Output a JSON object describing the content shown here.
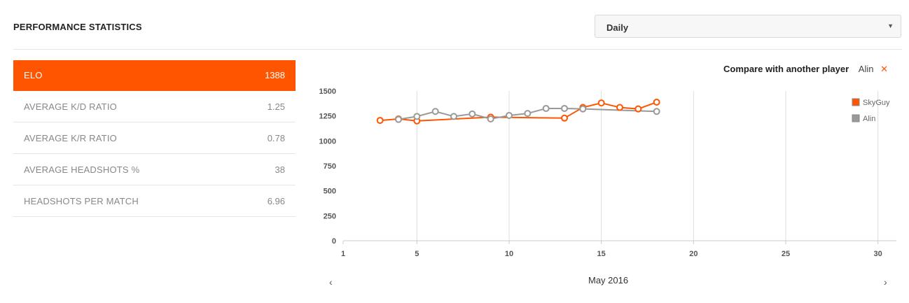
{
  "header": {
    "title": "PERFORMANCE STATISTICS",
    "period_select": {
      "selected": "Daily"
    }
  },
  "stats": [
    {
      "label": "ELO",
      "value": "1388",
      "active": true
    },
    {
      "label": "AVERAGE K/D RATIO",
      "value": "1.25"
    },
    {
      "label": "AVERAGE K/R RATIO",
      "value": "0.78"
    },
    {
      "label": "AVERAGE HEADSHOTS %",
      "value": "38"
    },
    {
      "label": "HEADSHOTS PER MATCH",
      "value": "6.96"
    }
  ],
  "compare": {
    "label": "Compare with another player",
    "player": "Alin",
    "remove_icon": "close-icon"
  },
  "navigation": {
    "month": "May 2016",
    "prev_icon": "chevron-left-icon",
    "next_icon": "chevron-right-icon"
  },
  "colors": {
    "accent": "#ff5500",
    "series_2": "#999999"
  },
  "chart_data": {
    "type": "line",
    "xlim": [
      1,
      31
    ],
    "ylim": [
      0,
      1500
    ],
    "xticks": [
      1,
      5,
      10,
      15,
      20,
      25,
      30
    ],
    "yticks": [
      0,
      250,
      500,
      750,
      1000,
      1250,
      1500
    ],
    "vertical_grid": true,
    "legend_position": "top-right",
    "series": [
      {
        "name": "SkyGuy",
        "color": "#ff5500",
        "points": [
          [
            3,
            1205
          ],
          [
            4,
            1220
          ],
          [
            5,
            1200
          ],
          [
            9,
            1238
          ],
          [
            13,
            1228
          ],
          [
            14,
            1335
          ],
          [
            15,
            1380
          ],
          [
            16,
            1335
          ],
          [
            17,
            1320
          ],
          [
            18,
            1388
          ]
        ]
      },
      {
        "name": "Alin",
        "color": "#999999",
        "points": [
          [
            4,
            1215
          ],
          [
            5,
            1245
          ],
          [
            6,
            1295
          ],
          [
            7,
            1245
          ],
          [
            8,
            1270
          ],
          [
            9,
            1220
          ],
          [
            10,
            1255
          ],
          [
            11,
            1275
          ],
          [
            12,
            1325
          ],
          [
            13,
            1325
          ],
          [
            14,
            1320
          ],
          [
            18,
            1295
          ]
        ]
      }
    ]
  }
}
